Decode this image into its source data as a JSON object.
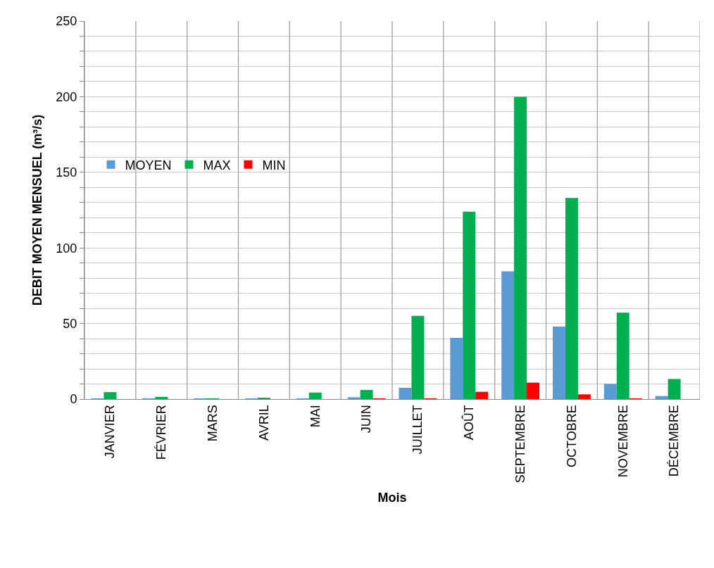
{
  "chart_data": {
    "type": "bar",
    "xlabel": "Mois",
    "ylabel": "DEBIT MOYEN MENSUEL (m³/s)",
    "categories": [
      "JANVIER",
      "FÉVRIER",
      "MARS",
      "AVRIL",
      "MAI",
      "JUIN",
      "JUILLET",
      "AOÛT",
      "SEPTEMBRE",
      "OCTOBRE",
      "NOVEMBRE",
      "DÉCEMBRE"
    ],
    "series": [
      {
        "name": "MOYEN",
        "color": "#5b9bd5",
        "values": [
          0.3,
          0.2,
          0.1,
          0.2,
          0.3,
          1.2,
          7.5,
          40.5,
          84.5,
          47.9,
          10,
          2
        ]
      },
      {
        "name": "MAX",
        "color": "#00b050",
        "values": [
          4.6,
          1.5,
          0.3,
          0.9,
          4.3,
          6,
          55,
          124,
          200,
          133,
          57.2,
          13.3
        ]
      },
      {
        "name": "MIN",
        "color": "#ff0000",
        "values": [
          0,
          0,
          0,
          0,
          0,
          0.2,
          0.3,
          4.8,
          10.9,
          3.1,
          0.3,
          0
        ]
      }
    ],
    "ylim": [
      0,
      250
    ],
    "yticks": [
      0,
      {
        "value": 10,
        "label": null
      },
      {
        "value": 20,
        "label": null
      },
      {
        "value": 30,
        "label": null
      },
      {
        "value": 40,
        "label": null
      },
      50,
      {
        "value": 60,
        "label": null
      },
      {
        "value": 70,
        "label": null
      },
      {
        "value": 80,
        "label": null
      },
      {
        "value": 90,
        "label": null
      },
      100,
      {
        "value": 110,
        "label": null
      },
      {
        "value": 120,
        "label": null
      },
      {
        "value": 130,
        "label": null
      },
      {
        "value": 140,
        "label": null
      },
      150,
      {
        "value": 160,
        "label": null
      },
      {
        "value": 170,
        "label": null
      },
      {
        "value": 180,
        "label": null
      },
      {
        "value": 190,
        "label": null
      },
      200,
      {
        "value": 210,
        "label": null
      },
      {
        "value": 220,
        "label": null
      },
      {
        "value": 230,
        "label": null
      },
      {
        "value": 240,
        "label": null
      },
      250
    ],
    "grid": true,
    "legend": "left"
  }
}
